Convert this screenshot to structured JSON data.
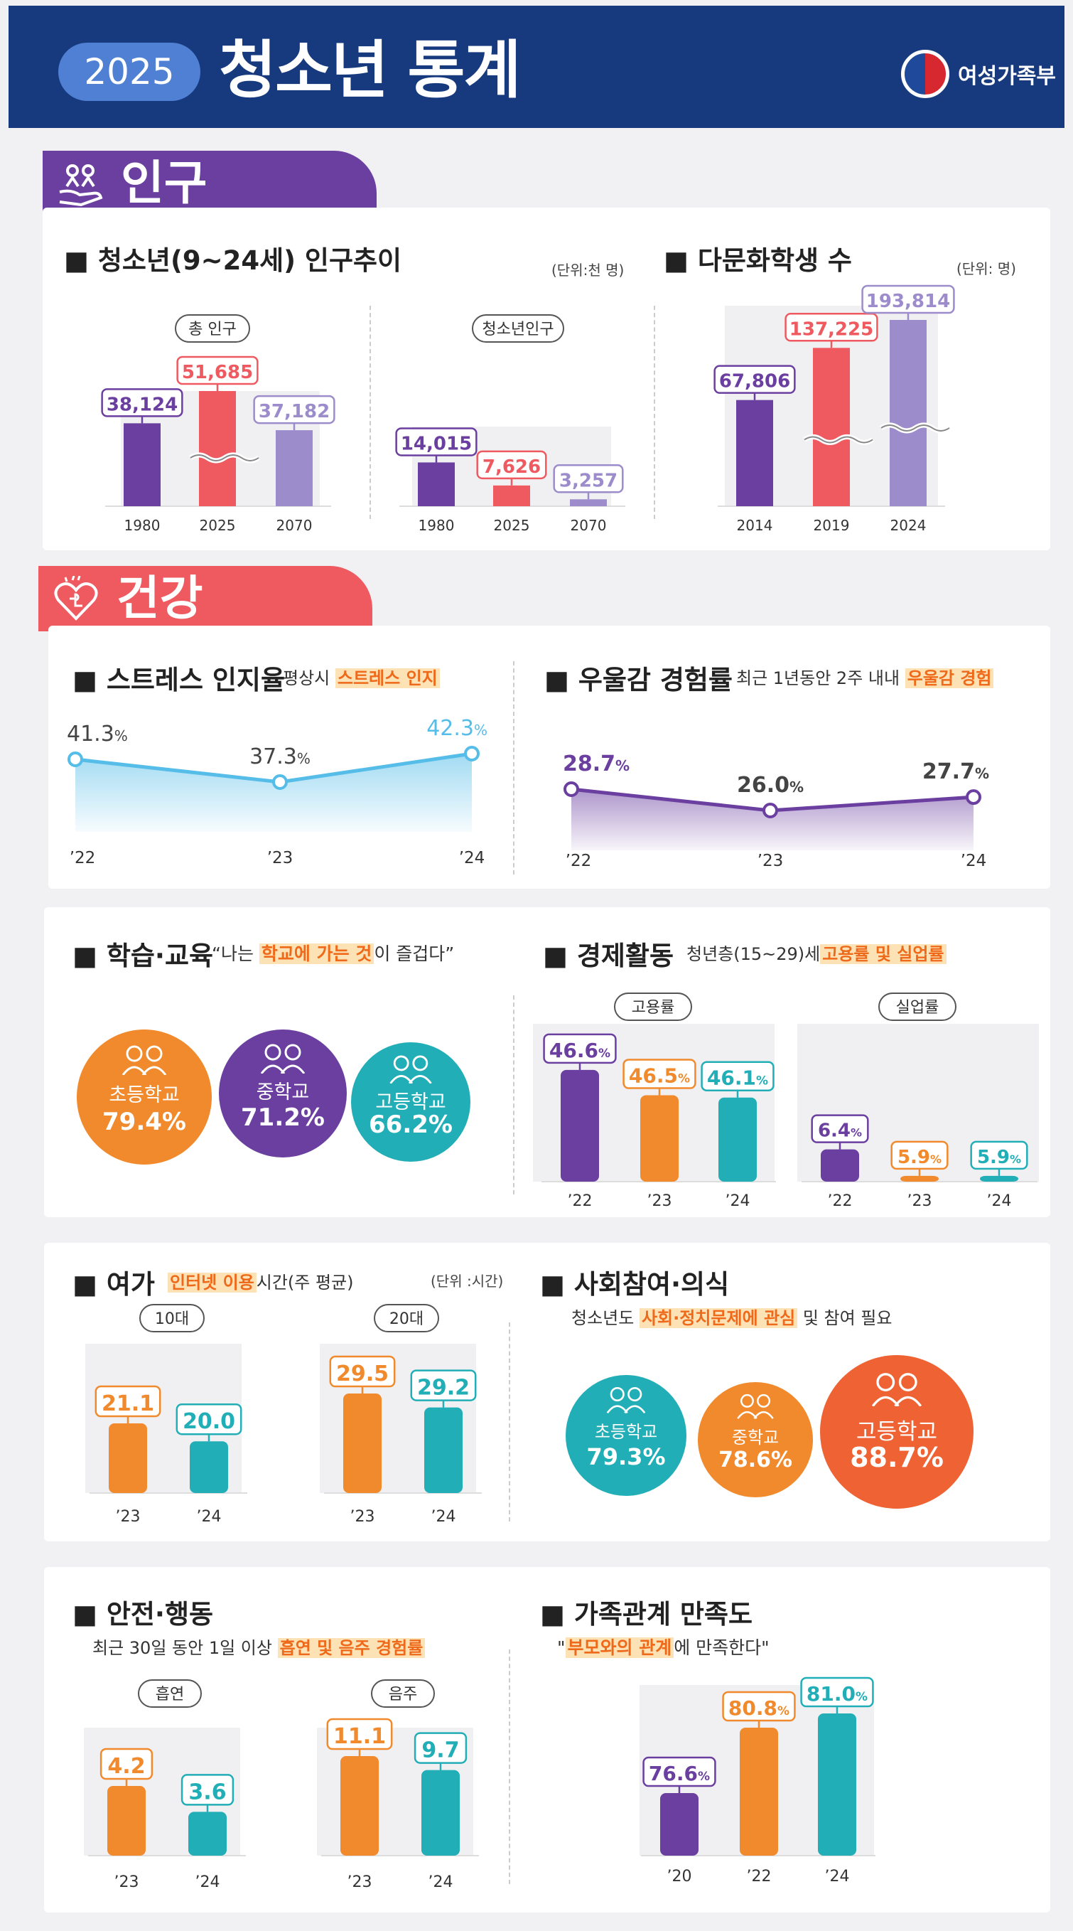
{
  "header": {
    "year": "2025",
    "title": "청소년 통계",
    "ministry": "여성가족부"
  },
  "colors": {
    "purple": "#6b3fa0",
    "red": "#ee5a5f",
    "lavender": "#9c8ccb",
    "orange": "#f08a2c",
    "teal": "#22aeb6",
    "blue": "#55bde8",
    "navy": "#173a7e"
  },
  "sections": {
    "population": "인구",
    "health": "건강"
  },
  "population": {
    "title": "■ 청소년(9~24세) 인구추이",
    "unit": "(단위:천 명)",
    "total_label": "총 인구",
    "youth_label": "청소년인구"
  },
  "multicultural": {
    "title": "■ 다문화학생 수",
    "unit": "(단위: 명)"
  },
  "stress": {
    "title": "■ 스트레스 인지율",
    "sub_prefix": "평상시",
    "sub_hl": "스트레스 인지"
  },
  "depression": {
    "title": "■ 우울감 경험률",
    "sub_prefix": "최근 1년동안 2주 내내",
    "sub_hl": "우울감 경험"
  },
  "education": {
    "title": "■ 학습·교육",
    "quote_prefix": "“나는",
    "quote_hl": "학교에 가는 것",
    "quote_suffix": "이 즐겁다”",
    "items": [
      {
        "label": "초등학교",
        "value": "79.4%"
      },
      {
        "label": "중학교",
        "value": "71.2%"
      },
      {
        "label": "고등학교",
        "value": "66.2%"
      }
    ]
  },
  "economy": {
    "title": "■ 경제활동",
    "sub_prefix": "청년층(15~29)세",
    "sub_hl": "고용률 및 실업률",
    "employment_label": "고용률",
    "unemployment_label": "실업률"
  },
  "leisure": {
    "title": "■ 여가",
    "sub_hl": "인터넷 이용",
    "sub_suffix": "시간(주 평균)",
    "unit": "(단위 :시간)",
    "teens_label": "10대",
    "twenties_label": "20대"
  },
  "social": {
    "title": "■ 사회참여·의식",
    "sub_prefix": "청소년도",
    "sub_hl": "사회·정치문제에 관심",
    "sub_suffix": "및 참여 필요",
    "items": [
      {
        "label": "초등학교",
        "value": "79.3%"
      },
      {
        "label": "중학교",
        "value": "78.6%"
      },
      {
        "label": "고등학교",
        "value": "88.7%"
      }
    ]
  },
  "safety": {
    "title": "■ 안전·행동",
    "sub_prefix": "최근 30일 동안 1일 이상",
    "sub_hl": "흡연 및 음주 경험률",
    "smoking_label": "흡연",
    "drinking_label": "음주"
  },
  "family": {
    "title": "■ 가족관계 만족도",
    "quote_prefix": "\"",
    "quote_hl": "부모와의 관계",
    "quote_suffix": "에 만족한다\""
  },
  "chart_data": [
    {
      "id": "total_population",
      "type": "bar",
      "title": "총 인구",
      "categories": [
        "1980",
        "2025",
        "2070"
      ],
      "values": [
        38124,
        51685,
        37182
      ],
      "labels": [
        "38,124",
        "51,685",
        "37,182"
      ],
      "unit": "천 명",
      "axis_break": true
    },
    {
      "id": "youth_population",
      "type": "bar",
      "title": "청소년인구",
      "categories": [
        "1980",
        "2025",
        "2070"
      ],
      "values": [
        14015,
        7626,
        3257
      ],
      "labels": [
        "14,015",
        "7,626",
        "3,257"
      ],
      "unit": "천 명"
    },
    {
      "id": "multicultural_students",
      "type": "bar",
      "title": "다문화학생 수",
      "categories": [
        "2014",
        "2019",
        "2024"
      ],
      "values": [
        67806,
        137225,
        193814
      ],
      "labels": [
        "67,806",
        "137,225",
        "193,814"
      ],
      "unit": "명",
      "axis_break": true
    },
    {
      "id": "stress",
      "type": "area",
      "title": "스트레스 인지율",
      "categories": [
        "’22",
        "’23",
        "’24"
      ],
      "values": [
        41.3,
        37.3,
        42.3
      ],
      "labels": [
        "41.3",
        "37.3",
        "42.3"
      ],
      "unit": "%"
    },
    {
      "id": "depression",
      "type": "area",
      "title": "우울감 경험률",
      "categories": [
        "’22",
        "’23",
        "’24"
      ],
      "values": [
        28.7,
        26.0,
        27.7
      ],
      "labels": [
        "28.7",
        "26.0",
        "27.7"
      ],
      "unit": "%"
    },
    {
      "id": "employment",
      "type": "bar",
      "title": "고용률",
      "categories": [
        "’22",
        "’23",
        "’24"
      ],
      "values": [
        46.6,
        46.5,
        46.1
      ],
      "labels": [
        "46.6",
        "46.5",
        "46.1"
      ],
      "unit": "%"
    },
    {
      "id": "unemployment",
      "type": "bar",
      "title": "실업률",
      "categories": [
        "’22",
        "’23",
        "’24"
      ],
      "values": [
        6.4,
        5.9,
        5.9
      ],
      "labels": [
        "6.4",
        "5.9",
        "5.9"
      ],
      "unit": "%"
    },
    {
      "id": "internet_teens",
      "type": "bar",
      "title": "10대",
      "categories": [
        "’23",
        "’24"
      ],
      "values": [
        21.1,
        20.0
      ],
      "labels": [
        "21.1",
        "20.0"
      ],
      "unit": "시간"
    },
    {
      "id": "internet_twenties",
      "type": "bar",
      "title": "20대",
      "categories": [
        "’23",
        "’24"
      ],
      "values": [
        29.5,
        29.2
      ],
      "labels": [
        "29.5",
        "29.2"
      ],
      "unit": "시간"
    },
    {
      "id": "smoking",
      "type": "bar",
      "title": "흡연",
      "categories": [
        "’23",
        "’24"
      ],
      "values": [
        4.2,
        3.6
      ],
      "labels": [
        "4.2",
        "3.6"
      ],
      "unit": "%"
    },
    {
      "id": "drinking",
      "type": "bar",
      "title": "음주",
      "categories": [
        "’23",
        "’24"
      ],
      "values": [
        11.1,
        9.7
      ],
      "labels": [
        "11.1",
        "9.7"
      ],
      "unit": "%"
    },
    {
      "id": "family_satisfaction",
      "type": "bar",
      "title": "가족관계 만족도",
      "categories": [
        "’20",
        "’22",
        "’24"
      ],
      "values": [
        76.6,
        80.8,
        81.0
      ],
      "labels": [
        "76.6",
        "80.8",
        "81.0"
      ],
      "unit": "%"
    }
  ]
}
